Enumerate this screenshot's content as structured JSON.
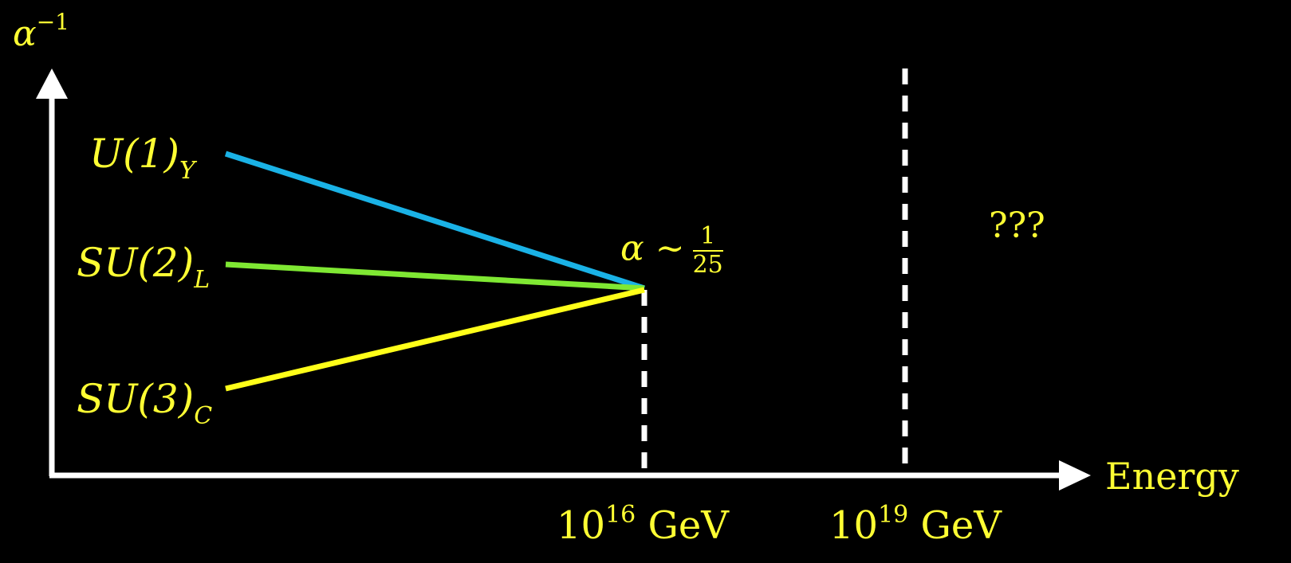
{
  "axes": {
    "y_axis_label_base": "α",
    "y_axis_label_exp": "−1",
    "x_axis_label": "Energy"
  },
  "colors": {
    "background": "#000000",
    "axis": "#ffffff",
    "label": "#ffff33",
    "u1": "#1ab2e6",
    "su2": "#7fe833",
    "su3": "#ffff19"
  },
  "couplings": [
    {
      "id": "u1",
      "label_main": "U(1)",
      "label_sub": "Y"
    },
    {
      "id": "su2",
      "label_main": "SU(2)",
      "label_sub": "L"
    },
    {
      "id": "su3",
      "label_main": "SU(3)",
      "label_sub": "C"
    }
  ],
  "unification": {
    "alpha_symbol": "α",
    "tilde": "∼",
    "frac_num": "1",
    "frac_den": "25"
  },
  "unknown_region": "???",
  "ticks": [
    {
      "base": "10",
      "exp": "16",
      "unit": "GeV"
    },
    {
      "base": "10",
      "exp": "19",
      "unit": "GeV"
    }
  ]
}
